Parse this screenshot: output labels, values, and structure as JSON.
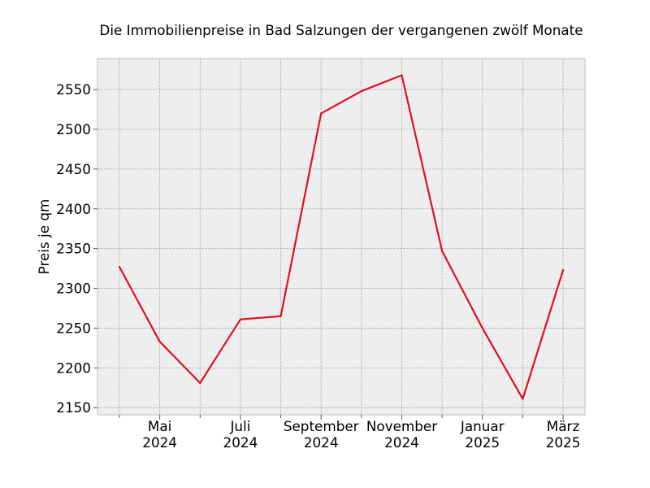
{
  "chart_data": {
    "type": "line",
    "title": "Die Immobilienpreise in Bad Salzungen der vergangenen zwölf Monate",
    "xlabel": "",
    "ylabel": "Preis je qm",
    "x": [
      "2024-04",
      "2024-05",
      "2024-06",
      "2024-07",
      "2024-08",
      "2024-09",
      "2024-10",
      "2024-11",
      "2024-12",
      "2025-01",
      "2025-02",
      "2025-03"
    ],
    "series": [
      {
        "values": [
          2327,
          2233,
          2181,
          2261,
          2265,
          2520,
          2548,
          2568,
          2347,
          2250,
          2161,
          2323
        ],
        "color": "#e01020"
      }
    ],
    "ylim": [
      2141,
      2589
    ],
    "yticks": [
      2150,
      2200,
      2250,
      2300,
      2350,
      2400,
      2450,
      2500,
      2550
    ],
    "xticks": [
      {
        "x": "2024-05",
        "line1": "Mai",
        "line2": "2024"
      },
      {
        "x": "2024-07",
        "line1": "Juli",
        "line2": "2024"
      },
      {
        "x": "2024-09",
        "line1": "September",
        "line2": "2024"
      },
      {
        "x": "2024-11",
        "line1": "November",
        "line2": "2024"
      },
      {
        "x": "2025-01",
        "line1": "Januar",
        "line2": "2025"
      },
      {
        "x": "2025-03",
        "line1": "März",
        "line2": "2025"
      }
    ],
    "minor_xticks": [
      "2024-04",
      "2024-06",
      "2024-08",
      "2024-10",
      "2024-12",
      "2025-02"
    ],
    "grid": true,
    "background_color": "#eeeeee"
  }
}
